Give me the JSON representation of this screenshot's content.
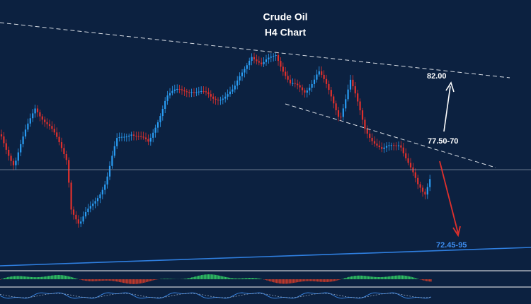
{
  "header": {
    "title": "Crude Oil",
    "subtitle": "H4  Chart"
  },
  "labels": [
    "82.00",
    "77.50-70",
    "72.45-95"
  ]
}
